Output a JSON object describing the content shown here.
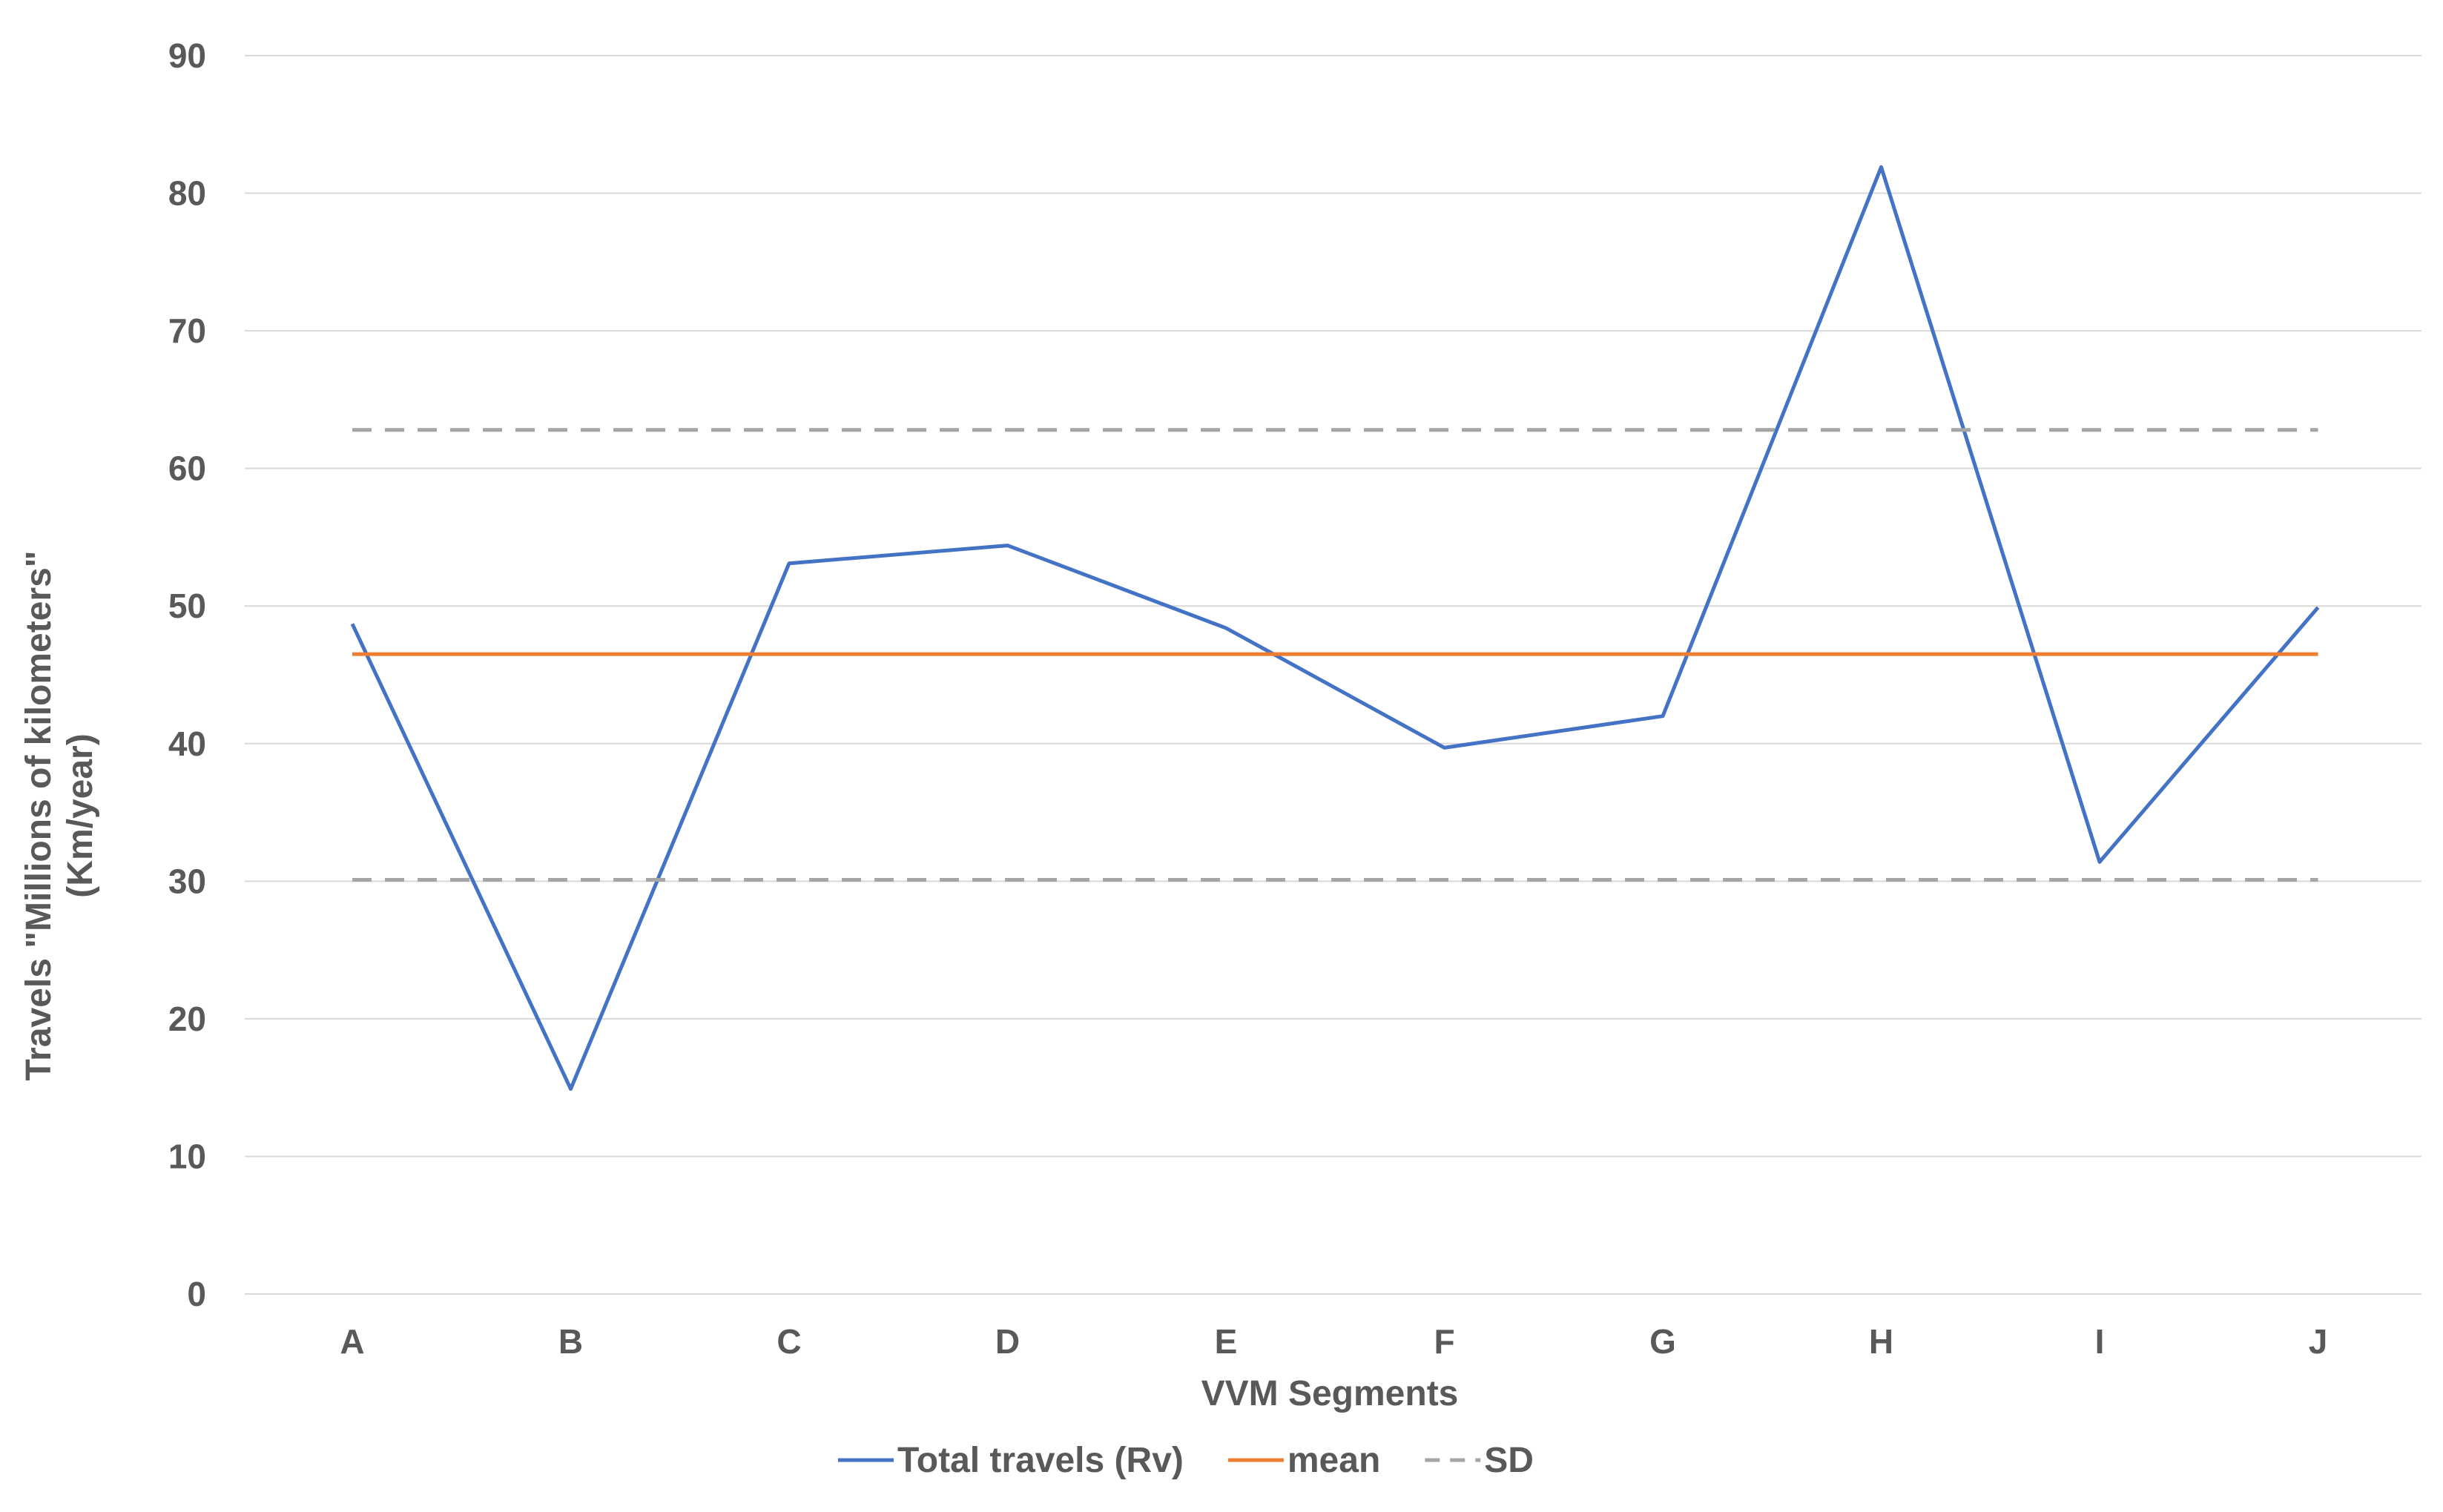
{
  "chart_data": {
    "type": "line",
    "title": "",
    "xlabel": "VVM Segments",
    "ylabel_lines": [
      "Travels \"Millions of kilometers\"",
      "(Km/year)"
    ],
    "categories": [
      "A",
      "B",
      "C",
      "D",
      "E",
      "F",
      "G",
      "H",
      "I",
      "J"
    ],
    "ylim": [
      0,
      90
    ],
    "yticks": [
      0,
      10,
      20,
      30,
      40,
      50,
      60,
      70,
      80,
      90
    ],
    "grid": true,
    "legend_position": "bottom",
    "series": [
      {
        "name": "Total travels (Rv)",
        "style": "solid",
        "color": "#4472C4",
        "values": [
          48.7,
          14.9,
          53.1,
          54.4,
          48.4,
          39.7,
          42.0,
          81.9,
          31.4,
          49.9
        ]
      },
      {
        "name": "mean",
        "style": "solid",
        "color": "#ED7D31",
        "values": [
          46.5,
          46.5,
          46.5,
          46.5,
          46.5,
          46.5,
          46.5,
          46.5,
          46.5,
          46.5
        ]
      },
      {
        "name": "SD",
        "style": "dashed",
        "color": "#A5A5A5",
        "values_upper": [
          62.8,
          62.8,
          62.8,
          62.8,
          62.8,
          62.8,
          62.8,
          62.8,
          62.8,
          62.8
        ],
        "values_lower": [
          30.1,
          30.1,
          30.1,
          30.1,
          30.1,
          30.1,
          30.1,
          30.1,
          30.1,
          30.1
        ]
      }
    ]
  }
}
